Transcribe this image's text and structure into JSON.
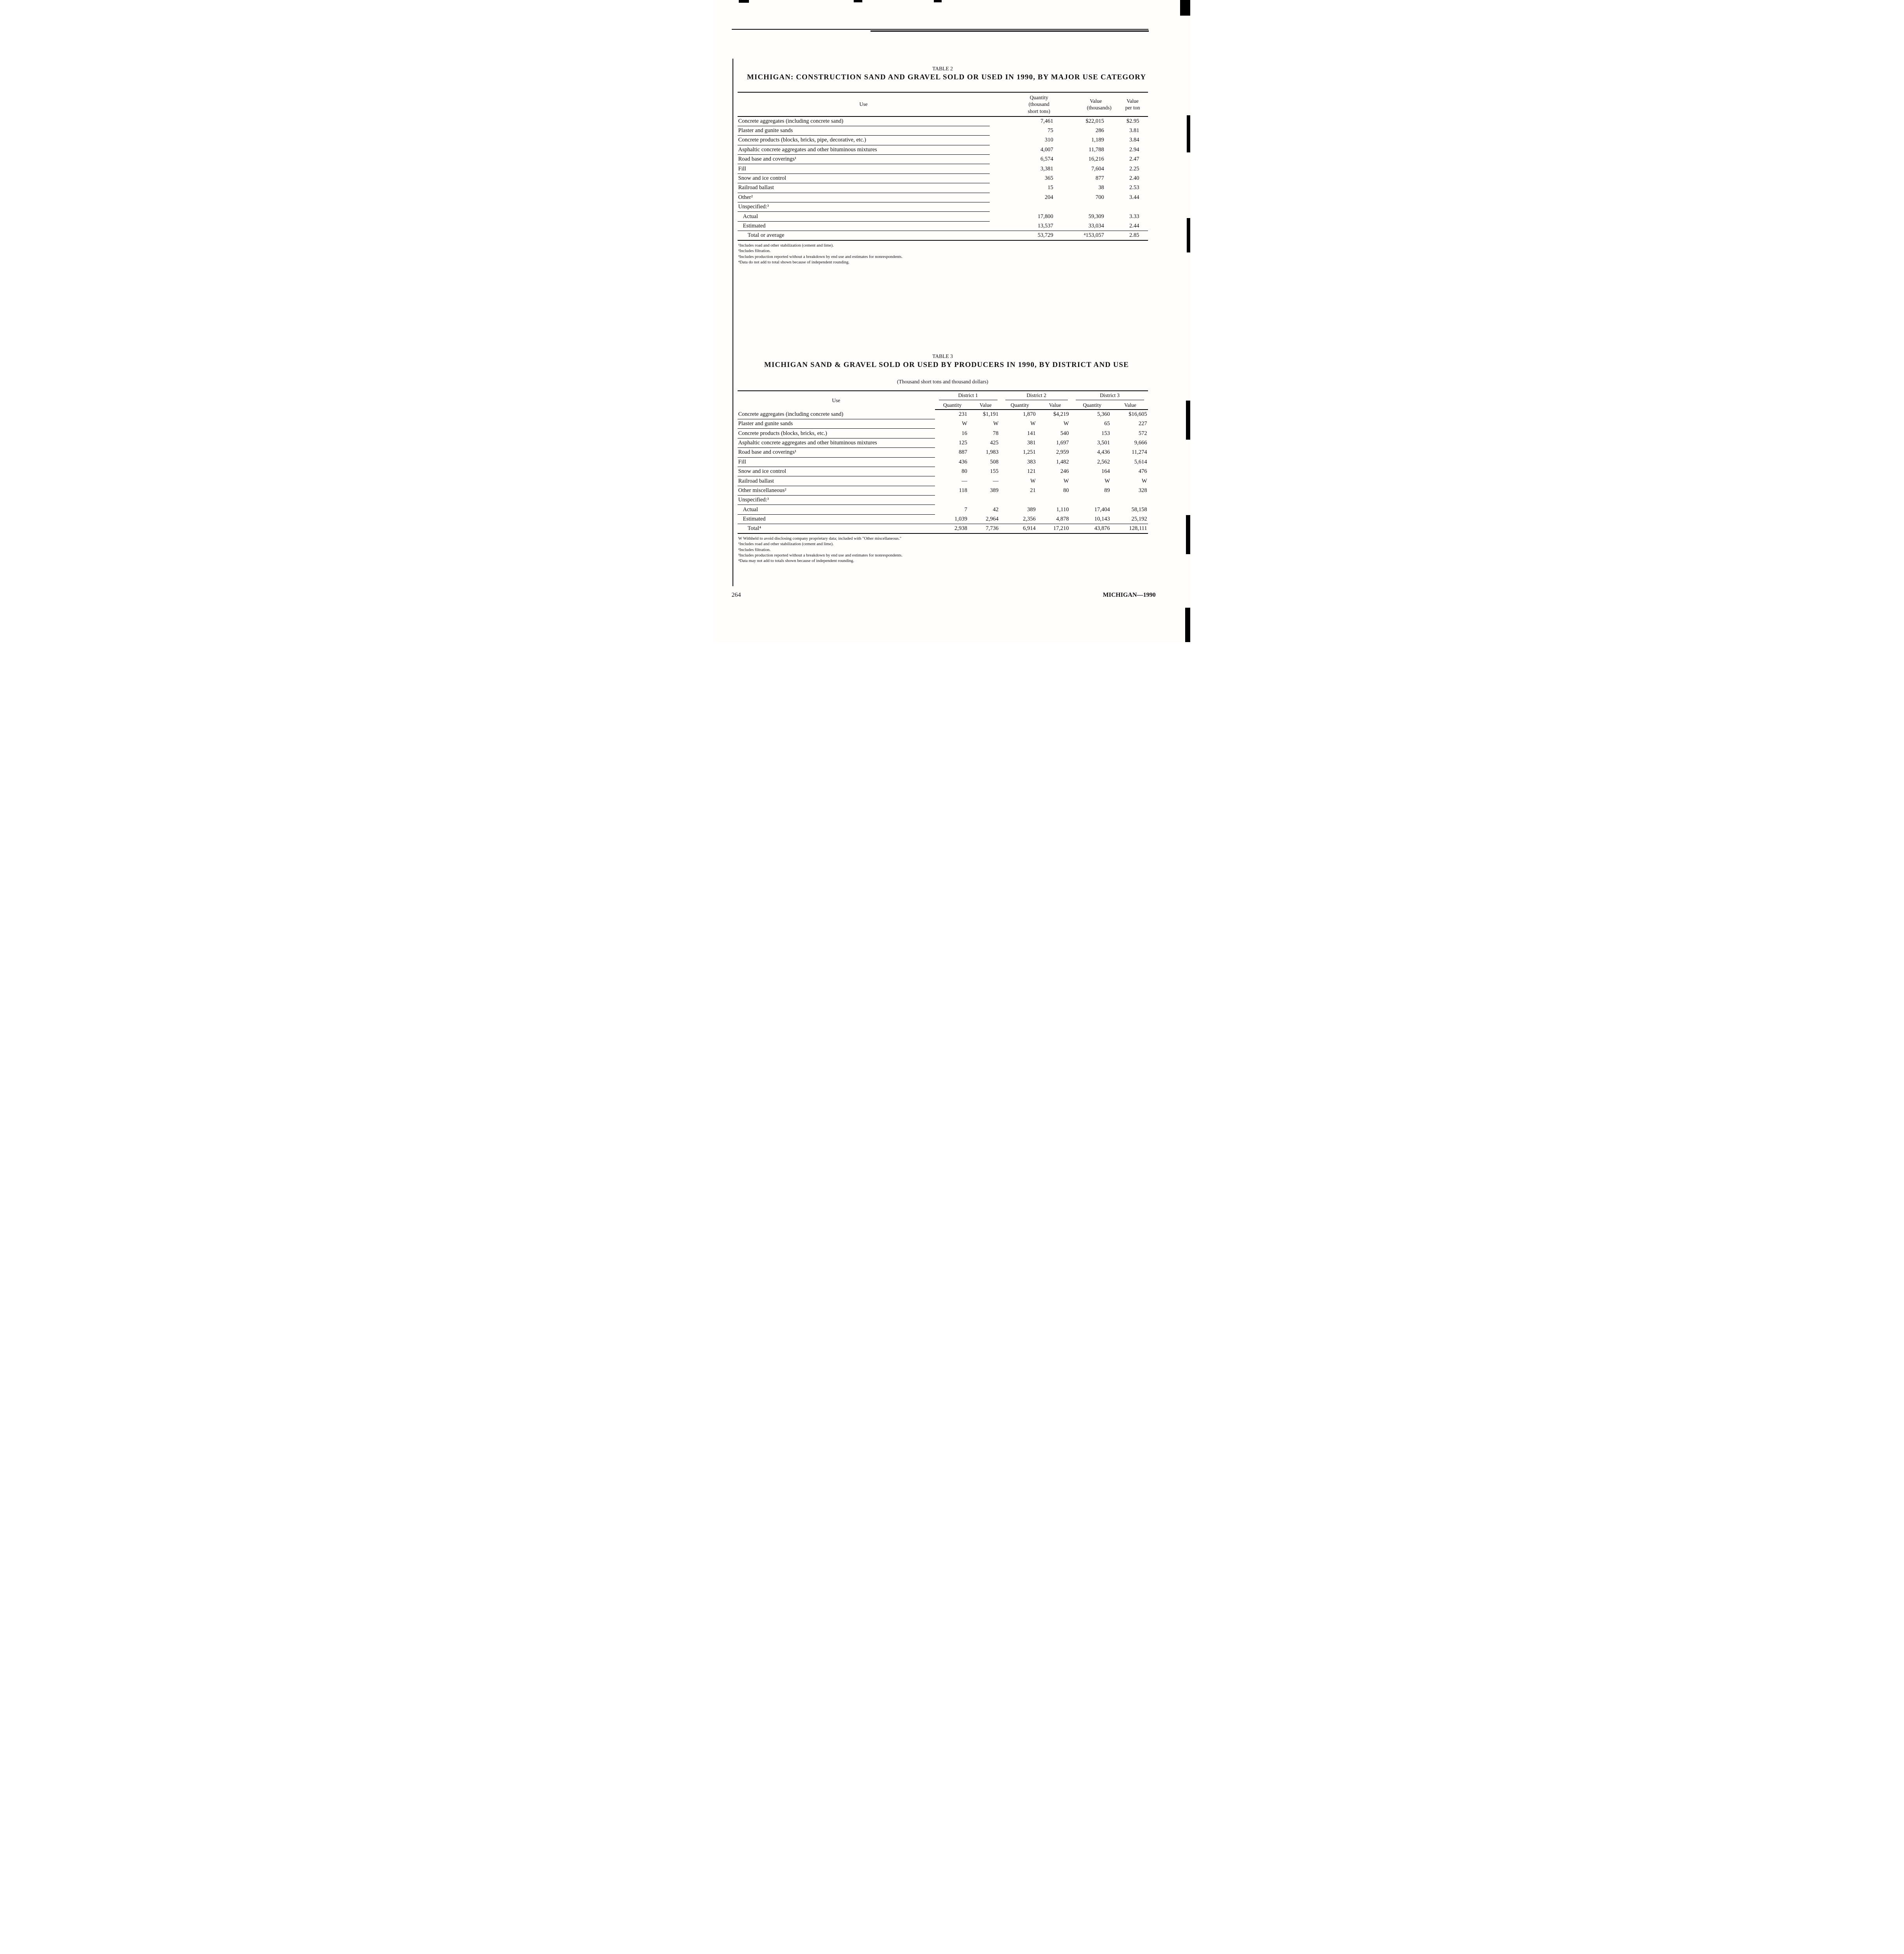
{
  "page": {
    "number": "264",
    "running_title": "MICHIGAN—1990"
  },
  "table2": {
    "caption": "TABLE 2",
    "title": "MICHIGAN: CONSTRUCTION SAND AND GRAVEL SOLD OR USED IN 1990, BY MAJOR USE CATEGORY",
    "headers": {
      "use": "Use",
      "quantity": "Quantity\n(thousand\nshort tons)",
      "value": "Value\n(thousands)",
      "value_per_ton": "Value\nper ton"
    },
    "rows": [
      {
        "use": "Concrete aggregates (including concrete sand)",
        "indent": 0,
        "values": [
          "7,461",
          "$22,015",
          "$2.95"
        ]
      },
      {
        "use": "Plaster and gunite sands",
        "indent": 0,
        "values": [
          "75",
          "286",
          "3.81"
        ]
      },
      {
        "use": "Concrete products (blocks, bricks, pipe, decorative, etc.)",
        "indent": 0,
        "values": [
          "310",
          "1,189",
          "3.84"
        ]
      },
      {
        "use": "Asphaltic concrete aggregates and other bituminous mixtures",
        "indent": 0,
        "values": [
          "4,007",
          "11,788",
          "2.94"
        ]
      },
      {
        "use": "Road base and coverings¹",
        "indent": 0,
        "values": [
          "6,574",
          "16,216",
          "2.47"
        ]
      },
      {
        "use": "Fill",
        "indent": 0,
        "values": [
          "3,381",
          "7,604",
          "2.25"
        ]
      },
      {
        "use": "Snow and ice control",
        "indent": 0,
        "values": [
          "365",
          "877",
          "2.40"
        ]
      },
      {
        "use": "Railroad ballast",
        "indent": 0,
        "values": [
          "15",
          "38",
          "2.53"
        ]
      },
      {
        "use": "Other²",
        "indent": 0,
        "values": [
          "204",
          "700",
          "3.44"
        ]
      },
      {
        "use": "Unspecified:³",
        "indent": 0,
        "values": [
          "",
          "",
          ""
        ]
      },
      {
        "use": "Actual",
        "indent": 1,
        "values": [
          "17,800",
          "59,309",
          "3.33"
        ]
      },
      {
        "use": "Estimated",
        "indent": 1,
        "values": [
          "13,537",
          "33,034",
          "2.44"
        ],
        "full_rule": true
      },
      {
        "use": "Total or average",
        "indent": 2,
        "values": [
          "53,729",
          "⁴153,057",
          "2.85"
        ],
        "total": true
      }
    ],
    "footnotes": [
      "¹Includes road and other stabilization (cement and lime).",
      "²Includes filtration.",
      "³Includes production reported without a breakdown by end use and estimates for nonrespondents.",
      "⁴Data do not add to total shown because of independent rounding."
    ]
  },
  "table3": {
    "caption": "TABLE 3",
    "title": "MICHIGAN  SAND & GRAVEL SOLD OR USED BY PRODUCERS IN 1990, BY DISTRICT AND USE",
    "subtitle": "(Thousand short tons and thousand dollars)",
    "headers": {
      "use": "Use",
      "districts": [
        "District 1",
        "District 2",
        "District 3"
      ],
      "sub": [
        "Quantity",
        "Value"
      ]
    },
    "rows": [
      {
        "use": "Concrete aggregates (including concrete sand)",
        "indent": 0,
        "values": [
          "231",
          "$1,191",
          "1,870",
          "$4,219",
          "5,360",
          "$16,605"
        ]
      },
      {
        "use": "Plaster and gunite sands",
        "indent": 0,
        "values": [
          "W",
          "W",
          "W",
          "W",
          "65",
          "227"
        ]
      },
      {
        "use": "Concrete products (blocks, bricks, etc.)",
        "indent": 0,
        "values": [
          "16",
          "78",
          "141",
          "540",
          "153",
          "572"
        ]
      },
      {
        "use": "Asphaltic concrete aggregates and other bituminous mixtures",
        "indent": 0,
        "values": [
          "125",
          "425",
          "381",
          "1,697",
          "3,501",
          "9,666"
        ]
      },
      {
        "use": "Road base and coverings¹",
        "indent": 0,
        "values": [
          "887",
          "1,983",
          "1,251",
          "2,959",
          "4,436",
          "11,274"
        ]
      },
      {
        "use": "Fill",
        "indent": 0,
        "values": [
          "436",
          "508",
          "383",
          "1,482",
          "2,562",
          "5,614"
        ]
      },
      {
        "use": "Snow and ice control",
        "indent": 0,
        "values": [
          "80",
          "155",
          "121",
          "246",
          "164",
          "476"
        ]
      },
      {
        "use": "Railroad ballast",
        "indent": 0,
        "values": [
          "—",
          "—",
          "W",
          "W",
          "W",
          "W"
        ]
      },
      {
        "use": "Other miscellaneous²",
        "indent": 0,
        "values": [
          "118",
          "389",
          "21",
          "80",
          "89",
          "328"
        ]
      },
      {
        "use": "Unspecified:³",
        "indent": 0,
        "values": [
          "",
          "",
          "",
          "",
          "",
          ""
        ]
      },
      {
        "use": "Actual",
        "indent": 1,
        "values": [
          "7",
          "42",
          "389",
          "1,110",
          "17,404",
          "58,158"
        ]
      },
      {
        "use": "Estimated",
        "indent": 1,
        "values": [
          "1,039",
          "2,964",
          "2,356",
          "4,878",
          "10,143",
          "25,192"
        ],
        "full_rule": true
      },
      {
        "use": "Total⁴",
        "indent": 2,
        "values": [
          "2,938",
          "7,736",
          "6,914",
          "17,210",
          "43,876",
          "128,111"
        ],
        "total": true
      }
    ],
    "footnotes": [
      "W Withheld to avoid disclosing company proprietary data; included with \"Other miscellaneous.\"",
      "¹Includes road and other stabilization (cement and lime).",
      "²Includes filtration.",
      "³Includes production reported without a breakdown by end use and estimates for nonrespondents.",
      "⁴Data may not add to totals shown because of independent rounding."
    ]
  }
}
